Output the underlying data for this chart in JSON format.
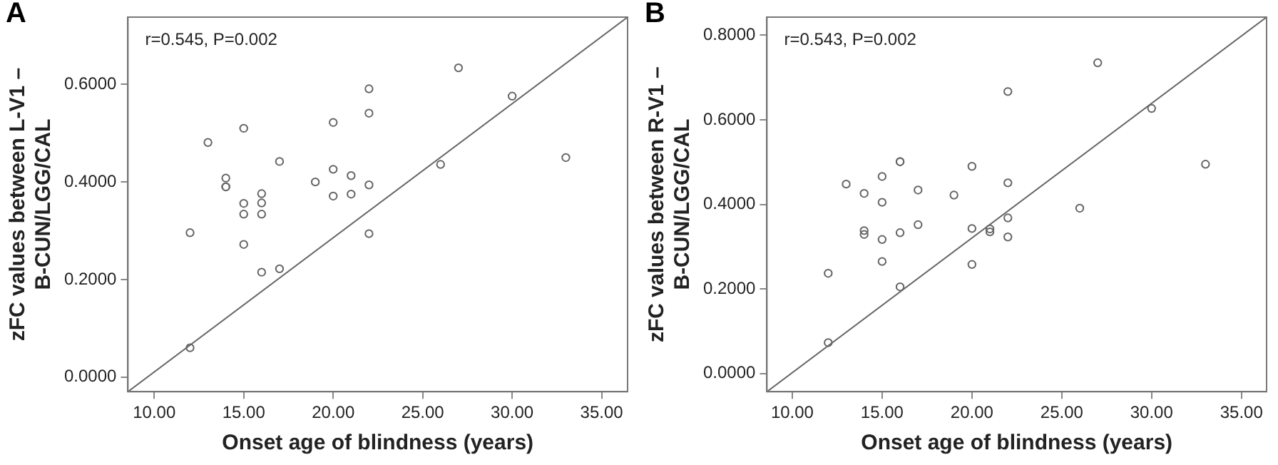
{
  "chart_data": [
    {
      "type": "scatter",
      "title": "A",
      "xlabel": "Onset age of blindness (years)",
      "ylabel": "zFC values between L-V1 –\nB-CUN/LGG/CAL",
      "annotations": [
        "r=0.545, P=0.002"
      ],
      "grid": false,
      "xlim": [
        8.53,
        36.45
      ],
      "ylim": [
        -0.03,
        0.738
      ],
      "xticks": [
        {
          "value": 10,
          "label": "10.00"
        },
        {
          "value": 15,
          "label": "15.00"
        },
        {
          "value": 20,
          "label": "20.00"
        },
        {
          "value": 25,
          "label": "25.00"
        },
        {
          "value": 30,
          "label": "30.00"
        },
        {
          "value": 35,
          "label": "35.00"
        }
      ],
      "yticks": [
        {
          "value": 0,
          "label": "0.0000"
        },
        {
          "value": 0.2,
          "label": "0.2000"
        },
        {
          "value": 0.4,
          "label": "0.4000"
        },
        {
          "value": 0.6,
          "label": "0.6000"
        }
      ],
      "series": [
        {
          "marker": "circle",
          "color": "#666666",
          "x": [
            12,
            13,
            12,
            14,
            14,
            14,
            15,
            15,
            15,
            15,
            16,
            16,
            16,
            16,
            17,
            17,
            19,
            20,
            20,
            20,
            21,
            21,
            22,
            22,
            22,
            22,
            26,
            27,
            30,
            33
          ],
          "values": [
            0.296,
            0.481,
            0.06,
            0.408,
            0.39,
            0.39,
            0.51,
            0.356,
            0.334,
            0.272,
            0.376,
            0.357,
            0.334,
            0.215,
            0.442,
            0.222,
            0.4,
            0.522,
            0.426,
            0.371,
            0.413,
            0.375,
            0.591,
            0.541,
            0.394,
            0.294,
            0.436,
            0.634,
            0.576,
            0.45
          ]
        },
        {
          "type": "line",
          "marker": "none",
          "color": "#666666",
          "x": [
            8.53,
            36.45
          ],
          "values": [
            -0.03,
            0.738
          ]
        }
      ]
    },
    {
      "type": "scatter",
      "title": "B",
      "xlabel": "Onset age of blindness (years)",
      "ylabel": "zFC values between R-V1 –\nB-CUN/LGG/CAL",
      "annotations": [
        "r=0.543, P=0.002"
      ],
      "grid": false,
      "xlim": [
        8.59,
        36.4
      ],
      "ylim": [
        -0.043,
        0.843
      ],
      "xticks": [
        {
          "value": 10,
          "label": "10.00"
        },
        {
          "value": 15,
          "label": "15.00"
        },
        {
          "value": 20,
          "label": "20.00"
        },
        {
          "value": 25,
          "label": "25.00"
        },
        {
          "value": 30,
          "label": "30.00"
        },
        {
          "value": 35,
          "label": "35.00"
        }
      ],
      "yticks": [
        {
          "value": 0,
          "label": "0.0000"
        },
        {
          "value": 0.2,
          "label": "0.2000"
        },
        {
          "value": 0.4,
          "label": "0.4000"
        },
        {
          "value": 0.6,
          "label": "0.6000"
        },
        {
          "value": 0.8,
          "label": "0.8000"
        }
      ],
      "series": [
        {
          "marker": "circle",
          "color": "#666666",
          "x": [
            12,
            12,
            13,
            14,
            14,
            14,
            15,
            15,
            15,
            15,
            16,
            16,
            16,
            16,
            17,
            17,
            19,
            20,
            20,
            20,
            21,
            21,
            22,
            22,
            22,
            22,
            26,
            27,
            30,
            33
          ],
          "values": [
            0.237,
            0.073,
            0.448,
            0.426,
            0.338,
            0.329,
            0.466,
            0.405,
            0.317,
            0.265,
            0.501,
            0.501,
            0.333,
            0.205,
            0.434,
            0.352,
            0.422,
            0.49,
            0.343,
            0.258,
            0.342,
            0.335,
            0.667,
            0.451,
            0.368,
            0.323,
            0.391,
            0.735,
            0.627,
            0.495
          ]
        },
        {
          "type": "line",
          "marker": "none",
          "color": "#666666",
          "x": [
            8.59,
            36.4
          ],
          "values": [
            -0.043,
            0.843
          ]
        }
      ]
    }
  ]
}
